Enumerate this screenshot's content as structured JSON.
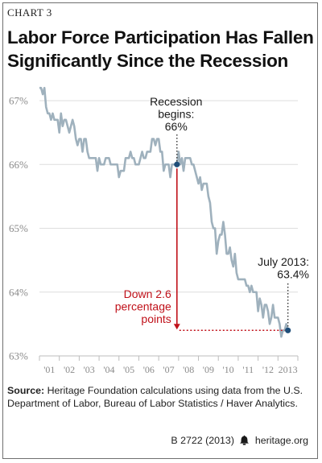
{
  "header": {
    "chart_number": "CHART 3",
    "title_line1": "Labor Force Participation Has Fallen",
    "title_line2": "Significantly Since the Recession"
  },
  "source": {
    "label": "Source:",
    "text": " Heritage Foundation calculations using data from the U.S. Department of Labor, Bureau of Labor Statistics / Haver Analytics."
  },
  "footer": {
    "report_id": "B 2722 (2013)",
    "site": "heritage.org",
    "logo_icon": "bell-icon"
  },
  "colors": {
    "line": "#9fb1bd",
    "marker": "#1f4e79",
    "annotation": "#c0111a",
    "grid": "#dddddd",
    "axis_text": "#8a8a8a"
  },
  "chart_data": {
    "type": "line",
    "title": "Labor Force Participation Has Fallen Significantly Since the Recession",
    "xlabel": "",
    "ylabel": "",
    "ylim": [
      63,
      67
    ],
    "yticks": [
      63,
      64,
      65,
      66,
      67
    ],
    "ytick_labels": [
      "63%",
      "64%",
      "65%",
      "66%",
      "67%"
    ],
    "xtick_labels": [
      "'01",
      "'02",
      "'03",
      "'04",
      "'05",
      "'06",
      "'07",
      "'08",
      "'09",
      "'10",
      "'11",
      "'12",
      "2013"
    ],
    "grid": "horizontal",
    "series": [
      {
        "start": "2001-01",
        "end": "2013-07",
        "frequency": "monthly",
        "values": [
          67.2,
          67.2,
          67.1,
          67.2,
          66.9,
          66.8,
          66.8,
          66.7,
          66.8,
          66.7,
          66.7,
          66.7,
          66.5,
          66.8,
          66.6,
          66.7,
          66.7,
          66.6,
          66.5,
          66.6,
          66.7,
          66.6,
          66.4,
          66.3,
          66.4,
          66.4,
          66.2,
          66.4,
          66.4,
          66.2,
          66.1,
          66.1,
          66.1,
          66.1,
          66.1,
          65.9,
          66.1,
          66.0,
          66.0,
          66.0,
          66.1,
          66.1,
          66.1,
          66.0,
          66.0,
          66.0,
          66.0,
          66.0,
          65.8,
          65.9,
          65.9,
          65.9,
          66.1,
          66.1,
          66.1,
          66.2,
          66.1,
          66.1,
          66.0,
          66.0,
          66.0,
          66.1,
          66.2,
          66.1,
          66.1,
          66.2,
          66.2,
          66.2,
          66.4,
          66.4,
          66.3,
          66.4,
          66.4,
          66.2,
          66.2,
          65.9,
          66.0,
          66.0,
          66.0,
          65.8,
          66.0,
          66.0,
          66.0,
          66.0,
          66.2,
          66.0,
          66.1,
          65.9,
          66.1,
          66.1,
          66.1,
          66.1,
          66.0,
          66.0,
          65.9,
          65.8,
          65.7,
          65.8,
          65.6,
          65.7,
          65.7,
          65.7,
          65.5,
          65.4,
          65.1,
          65.0,
          65.0,
          64.6,
          64.8,
          64.9,
          64.9,
          65.1,
          64.9,
          64.6,
          64.6,
          64.7,
          64.5,
          64.4,
          64.6,
          64.3,
          64.2,
          64.2,
          64.2,
          64.2,
          64.2,
          64.1,
          64.1,
          64.0,
          64.1,
          64.0,
          64.0,
          64.0,
          63.7,
          63.9,
          63.8,
          63.6,
          63.8,
          63.8,
          63.7,
          63.5,
          63.6,
          63.8,
          63.6,
          63.6,
          63.6,
          63.5,
          63.3,
          63.4,
          63.4,
          63.5,
          63.4
        ]
      }
    ],
    "annotations": [
      {
        "date": "2007-12",
        "value": 66.0,
        "label_lines": [
          "Recession",
          "begins:",
          "66%"
        ],
        "color": "#1a1a1a"
      },
      {
        "date": "2013-07",
        "value": 63.4,
        "label_lines": [
          "July 2013:",
          "63.4%"
        ],
        "color": "#1a1a1a"
      },
      {
        "label_lines": [
          "Down 2.6",
          "percentage",
          "points"
        ],
        "color": "#c0111a",
        "from_date": "2007-12",
        "from_value": 66.0,
        "to_date": "2013-07",
        "to_value": 63.4
      }
    ]
  }
}
